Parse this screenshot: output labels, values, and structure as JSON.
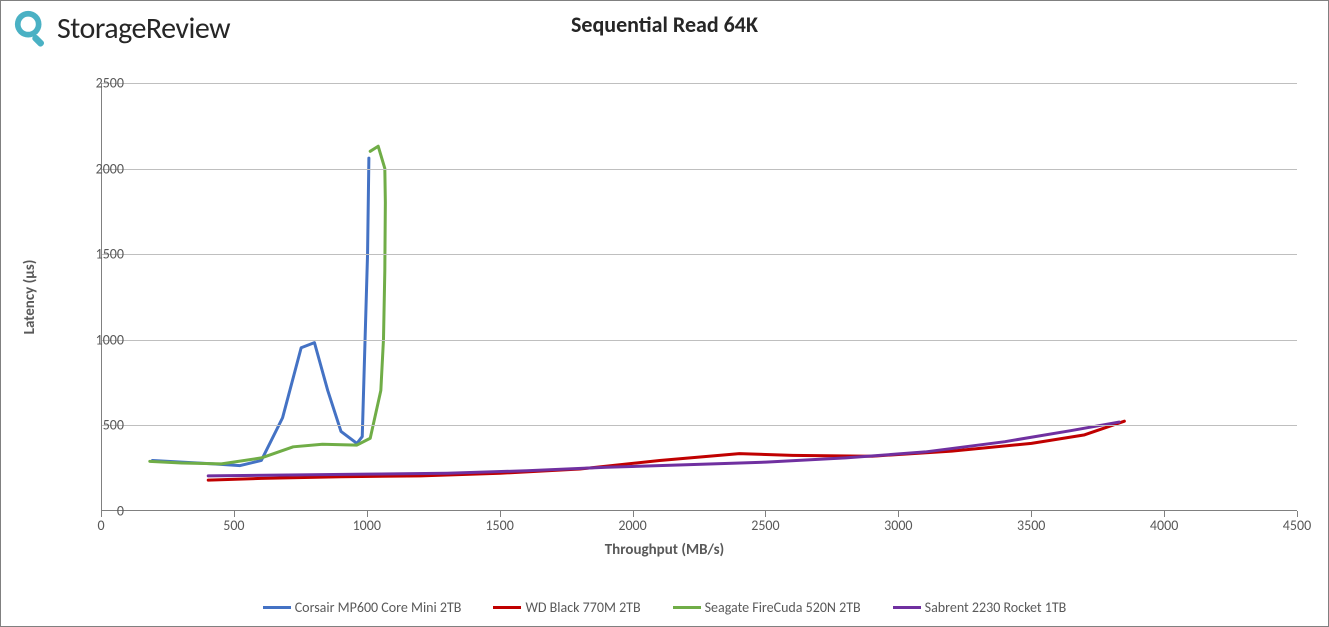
{
  "logo": {
    "text": "StorageReview",
    "icon_color": "#4ab1c4",
    "text_color": "#262626"
  },
  "chart": {
    "type": "line",
    "title": "Sequential Read 64K",
    "title_fontsize": 22,
    "title_fontweight": "bold",
    "xlabel": "Throughput (MB/s)",
    "ylabel": "Latency (µs)",
    "axis_label_fontsize": 15,
    "axis_label_fontweight": "bold",
    "tick_fontsize": 14,
    "background_color": "#ffffff",
    "grid_color": "#bfbfbf",
    "axis_color": "#808080",
    "xlim": [
      0,
      4500
    ],
    "ylim": [
      0,
      2500
    ],
    "xtick_step": 500,
    "ytick_step": 500,
    "xticks": [
      0,
      500,
      1000,
      1500,
      2000,
      2500,
      3000,
      3500,
      4000,
      4500
    ],
    "yticks": [
      0,
      500,
      1000,
      1500,
      2000,
      2500
    ],
    "line_width": 3,
    "series": [
      {
        "name": "Corsair MP600 Core Mini 2TB",
        "color": "#4472c4",
        "points": [
          [
            190,
            290
          ],
          [
            300,
            280
          ],
          [
            420,
            270
          ],
          [
            520,
            260
          ],
          [
            600,
            290
          ],
          [
            680,
            540
          ],
          [
            750,
            950
          ],
          [
            800,
            980
          ],
          [
            850,
            700
          ],
          [
            900,
            460
          ],
          [
            960,
            390
          ],
          [
            980,
            430
          ],
          [
            1000,
            1500
          ],
          [
            1005,
            2060
          ]
        ]
      },
      {
        "name": "WD Black 770M 2TB",
        "color": "#c00000",
        "points": [
          [
            400,
            175
          ],
          [
            600,
            185
          ],
          [
            900,
            195
          ],
          [
            1200,
            200
          ],
          [
            1500,
            215
          ],
          [
            1800,
            240
          ],
          [
            2100,
            290
          ],
          [
            2400,
            330
          ],
          [
            2600,
            320
          ],
          [
            2900,
            315
          ],
          [
            3200,
            345
          ],
          [
            3500,
            390
          ],
          [
            3700,
            440
          ],
          [
            3850,
            520
          ]
        ]
      },
      {
        "name": "Seagate FireCuda 520N 2TB",
        "color": "#70ad47",
        "points": [
          [
            180,
            285
          ],
          [
            300,
            275
          ],
          [
            450,
            270
          ],
          [
            600,
            305
          ],
          [
            720,
            370
          ],
          [
            830,
            385
          ],
          [
            960,
            380
          ],
          [
            1010,
            420
          ],
          [
            1050,
            700
          ],
          [
            1060,
            1000
          ],
          [
            1065,
            1400
          ],
          [
            1067,
            1800
          ],
          [
            1065,
            2000
          ],
          [
            1040,
            2130
          ],
          [
            1010,
            2100
          ]
        ]
      },
      {
        "name": "Sabrent 2230 Rocket 1TB",
        "color": "#7030a0",
        "points": [
          [
            400,
            200
          ],
          [
            700,
            205
          ],
          [
            1000,
            210
          ],
          [
            1300,
            215
          ],
          [
            1600,
            230
          ],
          [
            1900,
            250
          ],
          [
            2200,
            265
          ],
          [
            2500,
            280
          ],
          [
            2800,
            305
          ],
          [
            3100,
            340
          ],
          [
            3400,
            400
          ],
          [
            3650,
            465
          ],
          [
            3830,
            515
          ]
        ]
      }
    ]
  }
}
